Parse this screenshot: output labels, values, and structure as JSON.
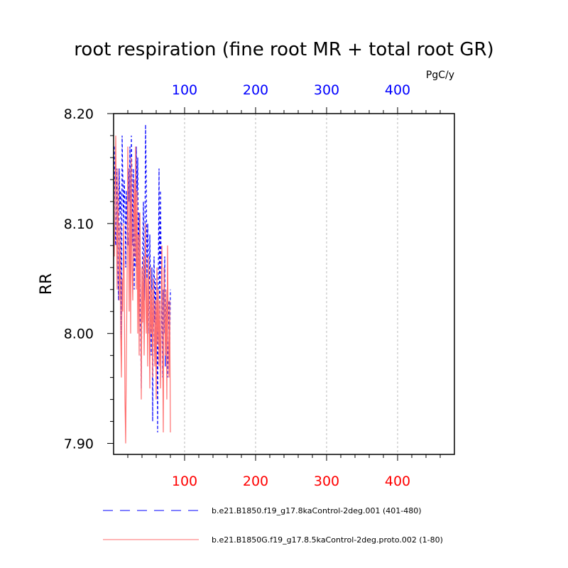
{
  "chart_data": {
    "type": "line",
    "title": "root respiration (fine root MR + total root GR)",
    "ylabel": "RR",
    "units_label": "PgC/y",
    "xlim": [
      0,
      480
    ],
    "ylim": [
      7.89,
      8.2
    ],
    "yticks": [
      7.9,
      8.0,
      8.1,
      8.2
    ],
    "yticklabels": [
      "7.90",
      "8.00",
      "8.10",
      "8.20"
    ],
    "xticks": [
      100,
      200,
      300,
      400
    ],
    "top_xticklabels": [
      "100",
      "200",
      "300",
      "400"
    ],
    "bottom_xticklabels": [
      "100",
      "200",
      "300",
      "400"
    ],
    "top_axis_color": "#0000ff",
    "bottom_axis_color": "#ff0000",
    "grid": "vertical dashed at major x ticks",
    "legend_position": "bottom",
    "series": [
      {
        "name": "b.e21.B1850.f19_g17.8kaControl-2deg.001 (401-480)",
        "color": "#0000ff",
        "dash": "dashed",
        "x": [
          1,
          2,
          3,
          4,
          5,
          6,
          7,
          8,
          9,
          10,
          11,
          12,
          13,
          14,
          15,
          16,
          17,
          18,
          19,
          20,
          21,
          22,
          23,
          24,
          25,
          26,
          27,
          28,
          29,
          30,
          31,
          32,
          33,
          34,
          35,
          36,
          37,
          38,
          39,
          40,
          41,
          42,
          43,
          44,
          45,
          46,
          47,
          48,
          49,
          50,
          51,
          52,
          53,
          54,
          55,
          56,
          57,
          58,
          59,
          60,
          61,
          62,
          63,
          64,
          65,
          66,
          67,
          68,
          69,
          70,
          71,
          72,
          73,
          74,
          75,
          76,
          77,
          78,
          79,
          80
        ],
        "y": [
          8.17,
          8.09,
          8.08,
          8.15,
          8.12,
          8.06,
          8.03,
          8.15,
          8.11,
          8.13,
          7.98,
          8.18,
          8.14,
          8.1,
          8.14,
          8.12,
          8.06,
          8.13,
          8.1,
          8.08,
          8.15,
          8.12,
          8.17,
          8.1,
          8.18,
          8.14,
          8.08,
          8.15,
          8.04,
          8.11,
          8.06,
          8.17,
          8.12,
          8.16,
          8.05,
          8.11,
          8.02,
          8.0,
          7.95,
          8.04,
          8.08,
          8.12,
          8.03,
          8.07,
          8.19,
          8.14,
          8.05,
          8.1,
          8.07,
          8.0,
          8.09,
          8.04,
          7.98,
          8.06,
          7.92,
          8.03,
          8.07,
          8.01,
          8.05,
          7.97,
          8.02,
          7.91,
          8.05,
          8.15,
          7.99,
          8.13,
          8.06,
          8.02,
          7.96,
          8.04,
          8.0,
          8.07,
          7.97,
          8.03,
          8.01,
          7.96,
          8.0,
          8.03,
          7.98,
          8.04
        ]
      },
      {
        "name": "b.e21.B1850G.f19_g17.8.5kaControl-2deg.proto.002 (1-80)",
        "color": "#ff6e6e",
        "dash": "solid",
        "x": [
          1,
          2,
          3,
          4,
          5,
          6,
          7,
          8,
          9,
          10,
          11,
          12,
          13,
          14,
          15,
          16,
          17,
          18,
          19,
          20,
          21,
          22,
          23,
          24,
          25,
          26,
          27,
          28,
          29,
          30,
          31,
          32,
          33,
          34,
          35,
          36,
          37,
          38,
          39,
          40,
          41,
          42,
          43,
          44,
          45,
          46,
          47,
          48,
          49,
          50,
          51,
          52,
          53,
          54,
          55,
          56,
          57,
          58,
          59,
          60,
          61,
          62,
          63,
          64,
          65,
          66,
          67,
          68,
          69,
          70,
          71,
          72,
          73,
          74,
          75,
          76,
          77,
          78,
          79,
          80
        ],
        "y": [
          8.07,
          8.12,
          8.18,
          8.1,
          8.04,
          8.15,
          8.08,
          8.03,
          8.1,
          8.0,
          7.96,
          8.05,
          8.02,
          8.1,
          8.05,
          7.94,
          7.9,
          7.98,
          8.05,
          8.17,
          8.09,
          8.02,
          8.15,
          8.0,
          8.16,
          8.06,
          8.03,
          8.1,
          8.14,
          8.07,
          8.17,
          8.04,
          8.13,
          8.0,
          8.09,
          7.98,
          8.11,
          8.04,
          7.94,
          8.06,
          8.01,
          8.07,
          7.98,
          8.04,
          8.1,
          8.0,
          8.05,
          7.97,
          8.07,
          8.02,
          7.95,
          8.06,
          8.0,
          8.04,
          7.96,
          8.05,
          8.01,
          7.97,
          8.03,
          7.94,
          8.06,
          7.99,
          8.04,
          7.97,
          8.03,
          7.95,
          8.01,
          8.08,
          7.99,
          7.91,
          8.06,
          8.02,
          7.98,
          8.04,
          7.94,
          8.08,
          8.0,
          7.96,
          8.03,
          7.91
        ]
      }
    ]
  }
}
